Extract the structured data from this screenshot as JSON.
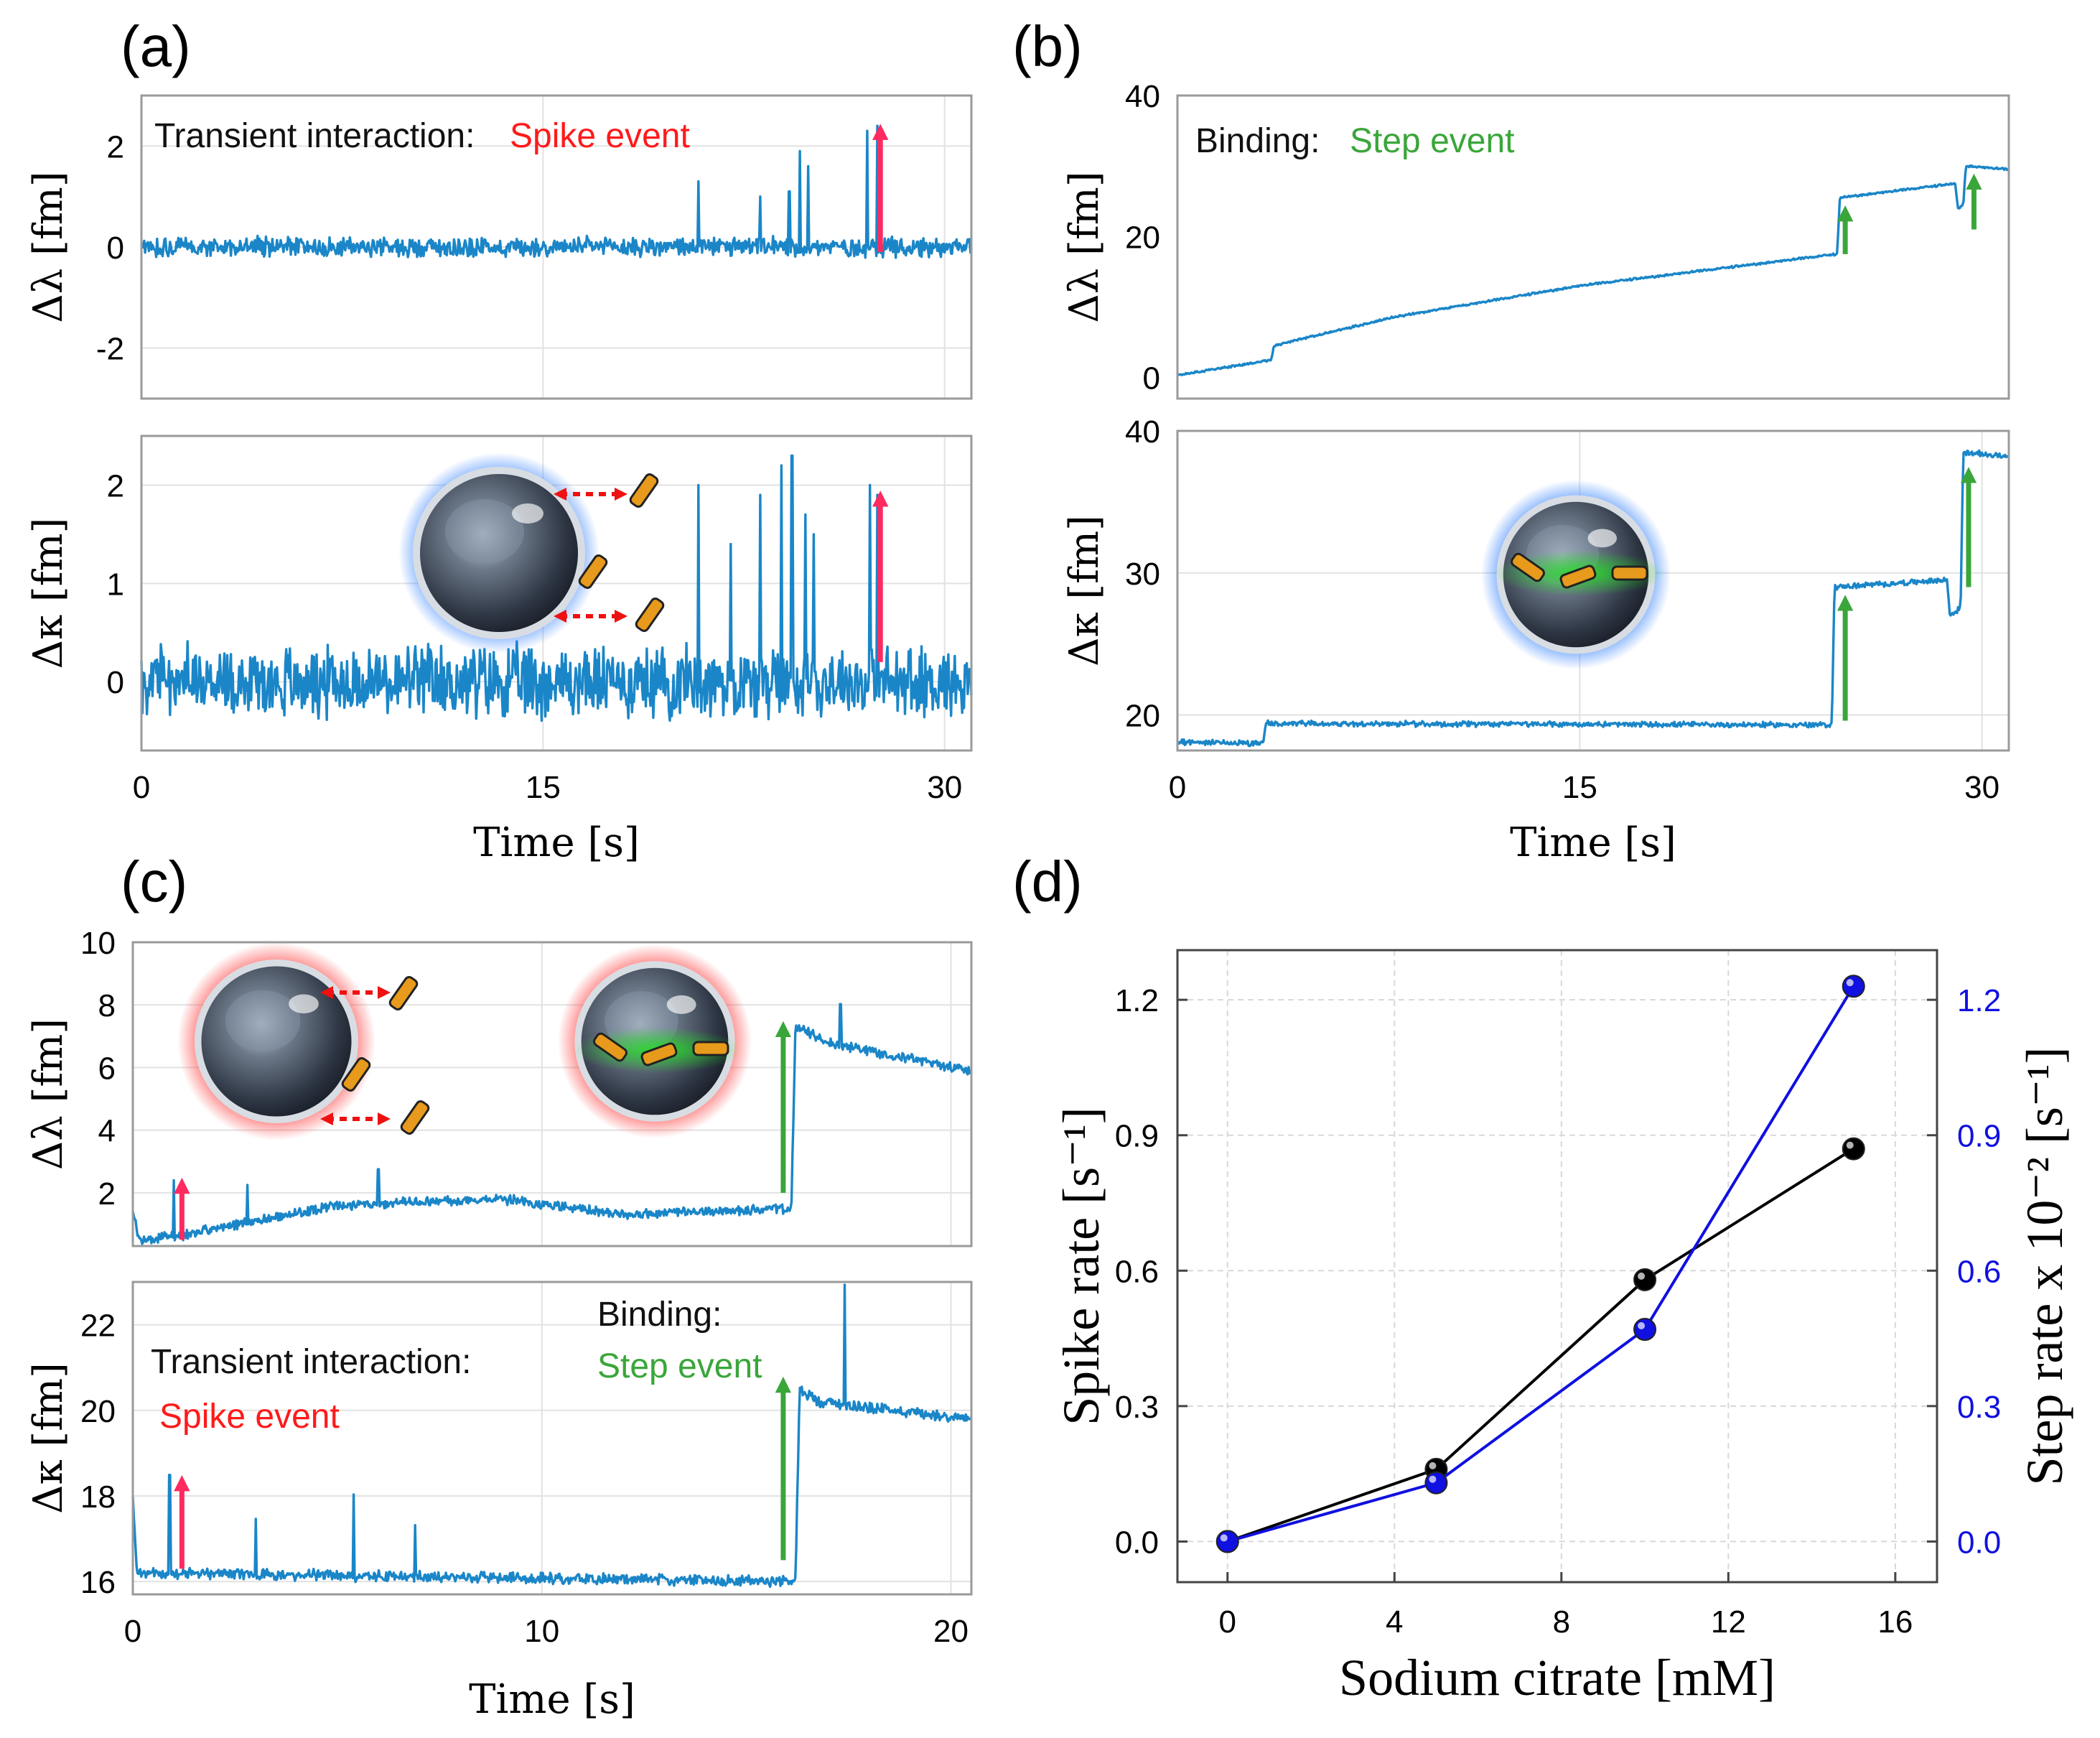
{
  "colors": {
    "trace": "#1a86c8",
    "spike": "#ff2a60",
    "step": "#3aa63a",
    "black_series": "#000000",
    "blue_series": "#1010e0"
  },
  "panel_labels": {
    "a": "(a)",
    "b": "(b)",
    "c": "(c)",
    "d": "(d)"
  },
  "axis_text": {
    "dlambda": "Δλ [fm]",
    "dkappa": "Δκ [fm]",
    "time": "Time [s]"
  },
  "annotations": {
    "transient_interaction": "Transient interaction:",
    "transient_interaction_c": "Transient interaction:",
    "spike_event": "Spike event",
    "spike_event_c": "Spike event",
    "binding": "Binding:",
    "binding_c": "Binding:",
    "step_event": "Step event",
    "step_event_c": "Step event"
  },
  "icons": [
    "microsphere-icon",
    "nanorod-icon",
    "double-arrow-icon",
    "event-arrow-icon"
  ],
  "chart_data": [
    {
      "id": "a-top",
      "type": "line",
      "title": "(a)",
      "xlabel": "",
      "ylabel": "Δλ [fm]",
      "xlim": [
        0,
        31
      ],
      "ylim": [
        -3,
        3
      ],
      "xticks": [
        0,
        15,
        30
      ],
      "xtick_labels": [
        "",
        "",
        ""
      ],
      "yticks": [
        -2,
        0,
        2
      ],
      "ytick_labels": [
        "-2",
        "0",
        "2"
      ],
      "grid": true,
      "trace": {
        "kind": "noise_spikes",
        "base": 0,
        "noise": 0.15,
        "spikes": [
          [
            20.8,
            1.3
          ],
          [
            23.1,
            1.0
          ],
          [
            24.2,
            1.1
          ],
          [
            24.6,
            1.9
          ],
          [
            24.9,
            1.6
          ],
          [
            27.1,
            2.3
          ],
          [
            27.5,
            2.4
          ]
        ]
      },
      "arrows": [
        {
          "x": 27.6,
          "y_from": -0.1,
          "y_to": 2.45,
          "color": "spike"
        }
      ]
    },
    {
      "id": "a-bottom",
      "type": "line",
      "xlabel": "Time [s]",
      "ylabel": "Δκ [fm]",
      "xlim": [
        0,
        31
      ],
      "ylim": [
        -0.7,
        2.5
      ],
      "xticks": [
        0,
        15,
        30
      ],
      "xtick_labels": [
        "0",
        "15",
        "30"
      ],
      "yticks": [
        0,
        1,
        2
      ],
      "ytick_labels": [
        "0",
        "1",
        "2"
      ],
      "grid": true,
      "trace": {
        "kind": "noise_spikes",
        "base": 0,
        "noise": 0.28,
        "spikes": [
          [
            20.8,
            2.0
          ],
          [
            22.0,
            1.4
          ],
          [
            23.1,
            1.9
          ],
          [
            23.9,
            2.2
          ],
          [
            24.3,
            2.3
          ],
          [
            24.8,
            1.7
          ],
          [
            25.1,
            1.5
          ],
          [
            27.2,
            2.0
          ],
          [
            27.5,
            1.9
          ]
        ]
      },
      "arrows": [
        {
          "x": 27.6,
          "y_from": 0.2,
          "y_to": 1.95,
          "color": "spike"
        }
      ]
    },
    {
      "id": "b-top",
      "type": "line",
      "title": "(b)",
      "xlabel": "",
      "ylabel": "Δλ [fm]",
      "xlim": [
        0,
        31
      ],
      "ylim": [
        -3,
        40
      ],
      "xticks": [
        0,
        15,
        30
      ],
      "xtick_labels": [
        "",
        "",
        ""
      ],
      "yticks": [
        0,
        20,
        40
      ],
      "ytick_labels": [
        "0",
        "20",
        "40"
      ],
      "grid": false,
      "trace": {
        "kind": "drift_steps",
        "noise": 0.12,
        "points": [
          [
            0,
            0.3
          ],
          [
            3.5,
            2.5
          ],
          [
            3.6,
            4.5
          ],
          [
            8,
            8.5
          ],
          [
            15,
            13
          ],
          [
            24.6,
            17.5
          ],
          [
            24.7,
            25.5
          ],
          [
            29.0,
            27.5
          ],
          [
            29.1,
            24.0
          ],
          [
            29.3,
            24.5
          ],
          [
            29.4,
            30.0
          ],
          [
            31,
            29.5
          ]
        ]
      },
      "arrows": [
        {
          "x": 24.9,
          "y_from": 17.5,
          "y_to": 24.5,
          "color": "step"
        },
        {
          "x": 29.7,
          "y_from": 21,
          "y_to": 29,
          "color": "step"
        }
      ]
    },
    {
      "id": "b-bottom",
      "type": "line",
      "xlabel": "Time [s]",
      "ylabel": "Δκ [fm]",
      "xlim": [
        0,
        31
      ],
      "ylim": [
        17.5,
        40
      ],
      "xticks": [
        0,
        15,
        30
      ],
      "xtick_labels": [
        "0",
        "15",
        "30"
      ],
      "yticks": [
        20,
        30,
        40
      ],
      "ytick_labels": [
        "20",
        "30",
        "40"
      ],
      "grid": true,
      "trace": {
        "kind": "drift_steps",
        "noise": 0.15,
        "points": [
          [
            0,
            18.1
          ],
          [
            3.2,
            18.0
          ],
          [
            3.3,
            19.4
          ],
          [
            24.4,
            19.3
          ],
          [
            24.5,
            29.0
          ],
          [
            28.7,
            29.5
          ],
          [
            28.8,
            27.0
          ],
          [
            29.2,
            27.5
          ],
          [
            29.3,
            38.5
          ],
          [
            31,
            38.2
          ]
        ]
      },
      "arrows": [
        {
          "x": 24.9,
          "y_from": 19.6,
          "y_to": 28.5,
          "color": "step"
        },
        {
          "x": 29.5,
          "y_from": 29,
          "y_to": 37.5,
          "color": "step"
        }
      ]
    },
    {
      "id": "c-top",
      "type": "line",
      "title": "(c)",
      "xlabel": "",
      "ylabel": "Δλ [fm]",
      "xlim": [
        0,
        20.5
      ],
      "ylim": [
        0.3,
        10
      ],
      "xticks": [
        0,
        10,
        20
      ],
      "xtick_labels": [
        "",
        "",
        ""
      ],
      "yticks": [
        2,
        4,
        6,
        8,
        10
      ],
      "ytick_labels": [
        "2",
        "4",
        "6",
        "8",
        "10"
      ],
      "grid": true,
      "trace": {
        "kind": "drift_steps",
        "noise": 0.12,
        "points": [
          [
            0,
            1.5
          ],
          [
            0.15,
            0.5
          ],
          [
            1,
            0.6
          ],
          [
            5,
            1.6
          ],
          [
            9,
            1.8
          ],
          [
            12,
            1.3
          ],
          [
            16.1,
            1.5
          ],
          [
            16.2,
            7.3
          ],
          [
            17.0,
            6.8
          ],
          [
            20.5,
            5.9
          ]
        ]
      },
      "spikes": [
        [
          1.0,
          1.8
        ],
        [
          2.8,
          1.2
        ],
        [
          6.0,
          1.1
        ],
        [
          17.3,
          1.3
        ]
      ],
      "arrows": [
        {
          "x": 1.2,
          "y_from": 0.5,
          "y_to": 2.5,
          "color": "spike"
        },
        {
          "x": 15.9,
          "y_from": 2.0,
          "y_to": 7.5,
          "color": "step"
        }
      ]
    },
    {
      "id": "c-bottom",
      "type": "line",
      "xlabel": "Time [s]",
      "ylabel": "Δκ [fm]",
      "xlim": [
        0,
        20.5
      ],
      "ylim": [
        15.7,
        23
      ],
      "xticks": [
        0,
        10,
        20
      ],
      "xtick_labels": [
        "0",
        "10",
        "20"
      ],
      "yticks": [
        16,
        18,
        20,
        22
      ],
      "ytick_labels": [
        "16",
        "18",
        "20",
        "22"
      ],
      "grid": true,
      "trace": {
        "kind": "noise_steps",
        "noise": 0.1,
        "points": [
          [
            0,
            18.0
          ],
          [
            0.1,
            16.2
          ],
          [
            16.2,
            16.0
          ],
          [
            16.3,
            20.5
          ],
          [
            16.8,
            20.2
          ],
          [
            20.5,
            19.8
          ]
        ]
      },
      "spikes": [
        [
          0.9,
          2.3
        ],
        [
          3.0,
          1.3
        ],
        [
          5.4,
          1.9
        ],
        [
          6.9,
          1.2
        ],
        [
          17.4,
          2.8
        ]
      ],
      "arrows": [
        {
          "x": 1.2,
          "y_from": 16.3,
          "y_to": 18.5,
          "color": "spike"
        },
        {
          "x": 15.9,
          "y_from": 16.5,
          "y_to": 20.8,
          "color": "step"
        }
      ]
    },
    {
      "id": "d",
      "type": "line",
      "title": "(d)",
      "xlabel": "Sodium citrate [mM]",
      "ylabel": "Spike rate [s⁻¹]",
      "ylabel_right": "Step rate x 10⁻² [s⁻¹]",
      "xlim": [
        -1.2,
        17.0
      ],
      "ylim": [
        -0.09,
        1.31
      ],
      "xticks": [
        0,
        4,
        8,
        12,
        16
      ],
      "xtick_labels": [
        "0",
        "4",
        "8",
        "12",
        "16"
      ],
      "yticks": [
        0.0,
        0.3,
        0.6,
        0.9,
        1.2
      ],
      "ytick_labels": [
        "0.0",
        "0.3",
        "0.6",
        "0.9",
        "1.2"
      ],
      "ytick_labels_right": [
        "0.0",
        "0.3",
        "0.6",
        "0.9",
        "1.2"
      ],
      "grid": true,
      "series": [
        {
          "name": "Spike rate",
          "axis": "left",
          "color": "black_series",
          "x": [
            0,
            5,
            10,
            15
          ],
          "values": [
            0.0,
            0.16,
            0.58,
            0.87
          ]
        },
        {
          "name": "Step rate x 10^-2",
          "axis": "right",
          "color": "blue_series",
          "x": [
            0,
            5,
            10,
            15
          ],
          "values": [
            0.0,
            0.13,
            0.47,
            1.23
          ]
        }
      ]
    }
  ]
}
